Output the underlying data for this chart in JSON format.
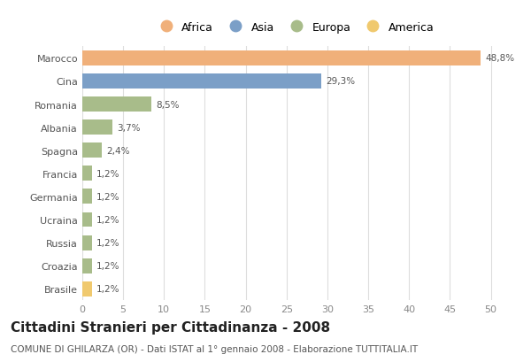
{
  "categories": [
    "Brasile",
    "Croazia",
    "Russia",
    "Ucraina",
    "Germania",
    "Francia",
    "Spagna",
    "Albania",
    "Romania",
    "Cina",
    "Marocco"
  ],
  "values": [
    1.2,
    1.2,
    1.2,
    1.2,
    1.2,
    1.2,
    2.4,
    3.7,
    8.5,
    29.3,
    48.8
  ],
  "colors": [
    "#f0c96e",
    "#a8bc8a",
    "#a8bc8a",
    "#a8bc8a",
    "#a8bc8a",
    "#a8bc8a",
    "#a8bc8a",
    "#a8bc8a",
    "#a8bc8a",
    "#7b9fc7",
    "#f0b07a"
  ],
  "labels": [
    "1,2%",
    "1,2%",
    "1,2%",
    "1,2%",
    "1,2%",
    "1,2%",
    "2,4%",
    "3,7%",
    "8,5%",
    "29,3%",
    "48,8%"
  ],
  "xlim": [
    0,
    52
  ],
  "xticks": [
    0,
    5,
    10,
    15,
    20,
    25,
    30,
    35,
    40,
    45,
    50
  ],
  "title": "Cittadini Stranieri per Cittadinanza - 2008",
  "subtitle": "COMUNE DI GHILARZA (OR) - Dati ISTAT al 1° gennaio 2008 - Elaborazione TUTTITALIA.IT",
  "legend": [
    {
      "label": "Africa",
      "color": "#f0b07a"
    },
    {
      "label": "Asia",
      "color": "#7b9fc7"
    },
    {
      "label": "Europa",
      "color": "#a8bc8a"
    },
    {
      "label": "America",
      "color": "#f0c96e"
    }
  ],
  "bg_color": "#ffffff",
  "bar_height": 0.65,
  "label_fontsize": 7.5,
  "title_fontsize": 11,
  "subtitle_fontsize": 7.5,
  "ytick_fontsize": 8,
  "xtick_fontsize": 8
}
